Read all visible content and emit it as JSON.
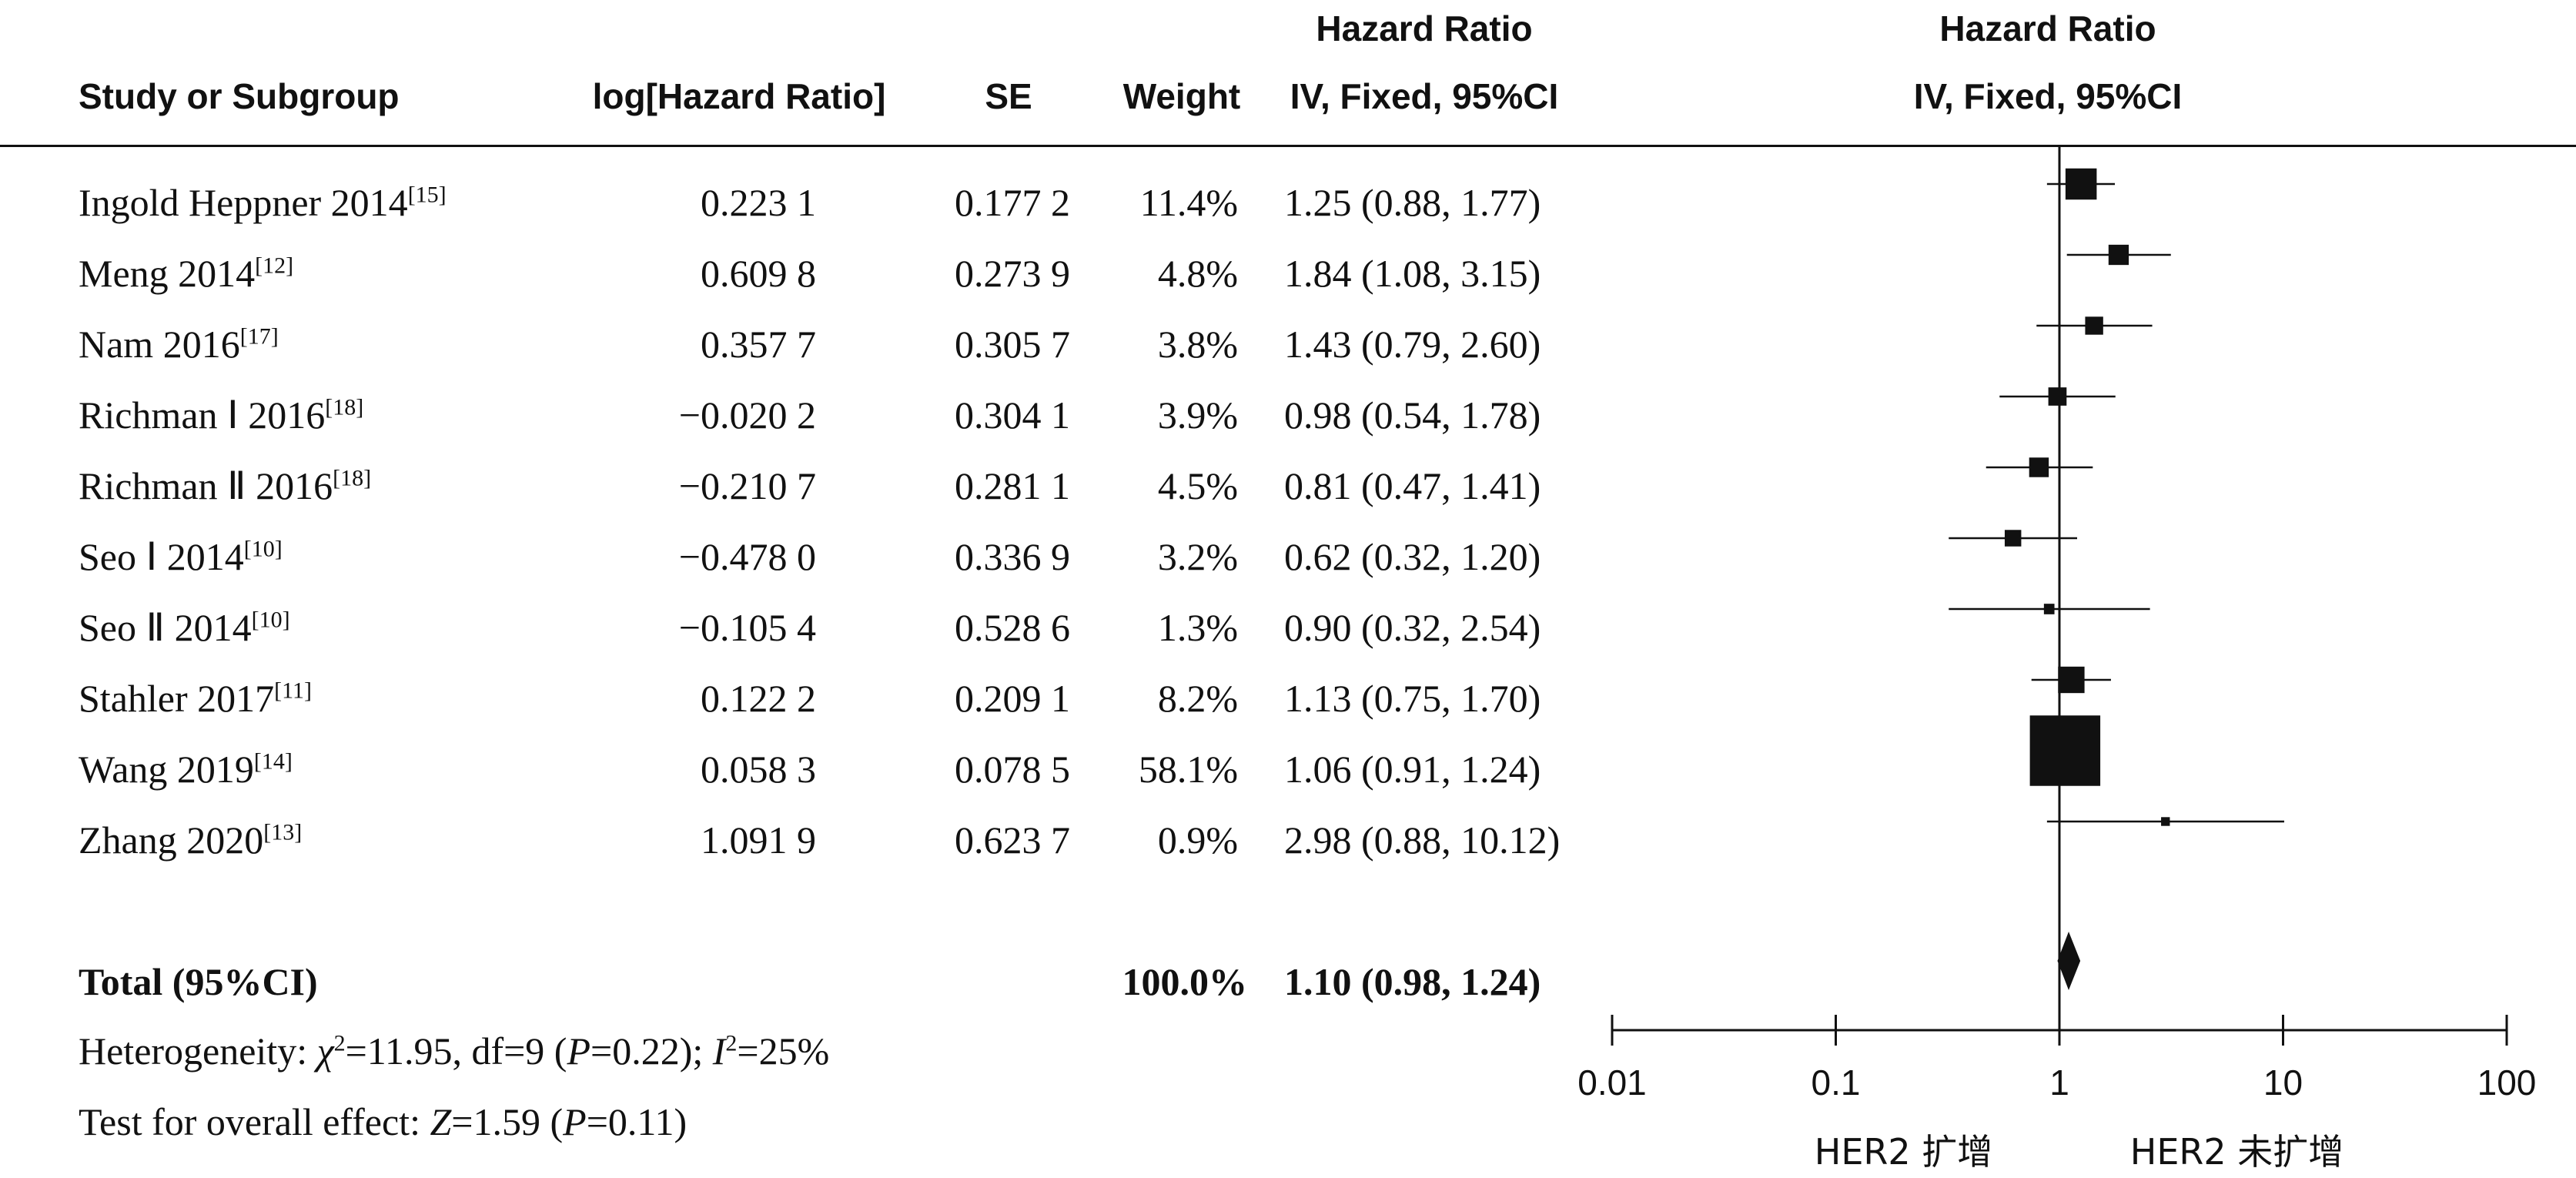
{
  "header": {
    "study": "Study or Subgroup",
    "loghr": "log[Hazard Ratio]",
    "se": "SE",
    "weight": "Weight",
    "hr_top": "Hazard Ratio",
    "hr_bottom": "IV, Fixed, 95%CI",
    "plot_top": "Hazard Ratio",
    "plot_bottom": "IV, Fixed, 95%CI"
  },
  "studies": [
    {
      "name": "Ingold Heppner 2014",
      "ref": "[15]",
      "loghr": "0.223 1",
      "se": "0.177 2",
      "weight": "11.4%",
      "ci": "1.25 (0.88, 1.77)"
    },
    {
      "name": "Meng 2014",
      "ref": "[12]",
      "loghr": "0.609 8",
      "se": "0.273 9",
      "weight": "4.8%",
      "ci": "1.84 (1.08, 3.15)"
    },
    {
      "name": "Nam 2016",
      "ref": "[17]",
      "loghr": "0.357 7",
      "se": "0.305 7",
      "weight": "3.8%",
      "ci": "1.43 (0.79, 2.60)"
    },
    {
      "name": "Richman Ⅰ 2016",
      "ref": "[18]",
      "loghr": "−0.020 2",
      "se": "0.304 1",
      "weight": "3.9%",
      "ci": "0.98 (0.54, 1.78)"
    },
    {
      "name": "Richman Ⅱ 2016",
      "ref": "[18]",
      "loghr": "−0.210 7",
      "se": "0.281 1",
      "weight": "4.5%",
      "ci": "0.81 (0.47, 1.41)"
    },
    {
      "name": "Seo Ⅰ 2014",
      "ref": "[10]",
      "loghr": "−0.478 0",
      "se": "0.336 9",
      "weight": "3.2%",
      "ci": "0.62 (0.32, 1.20)"
    },
    {
      "name": "Seo Ⅱ 2014",
      "ref": "[10]",
      "loghr": "−0.105 4",
      "se": "0.528 6",
      "weight": "1.3%",
      "ci": "0.90 (0.32, 2.54)"
    },
    {
      "name": "Stahler 2017",
      "ref": "[11]",
      "loghr": "0.122 2",
      "se": "0.209 1",
      "weight": "8.2%",
      "ci": "1.13 (0.75, 1.70)"
    },
    {
      "name": "Wang 2019",
      "ref": "[14]",
      "loghr": "0.058 3",
      "se": "0.078 5",
      "weight": "58.1%",
      "ci": "1.06 (0.91, 1.24)"
    },
    {
      "name": "Zhang 2020",
      "ref": "[13]",
      "loghr": "1.091 9",
      "se": "0.623 7",
      "weight": "0.9%",
      "ci": "2.98 (0.88, 10.12)"
    }
  ],
  "total": {
    "label": "Total (95%CI)",
    "weight": "100.0%",
    "ci": "1.10 (0.98, 1.24)"
  },
  "footer": {
    "het_prefix": "Heterogeneity: ",
    "chi": "χ",
    "het_chi_val": "=11.95, df=9 (",
    "p": "P",
    "het_p_val": "=0.22); ",
    "i": "I",
    "het_i_val": "=25%",
    "test_prefix": "Test for overall effect: ",
    "z": "Z",
    "test_z_val": "=1.59 (",
    "test_p_val": "=0.11)"
  },
  "chart_data": {
    "type": "forest",
    "scale": "log",
    "xlim": [
      0.01,
      100
    ],
    "ticks": [
      0.01,
      0.1,
      1,
      10,
      100
    ],
    "tick_labels": [
      "0.01",
      "0.1",
      "1",
      "10",
      "100"
    ],
    "null_line": 1,
    "label_left": "HER2 扩增",
    "label_right": "HER2 未扩增",
    "points": [
      {
        "hr": 1.25,
        "lo": 0.88,
        "hi": 1.77,
        "weight": 11.4
      },
      {
        "hr": 1.84,
        "lo": 1.08,
        "hi": 3.15,
        "weight": 4.8
      },
      {
        "hr": 1.43,
        "lo": 0.79,
        "hi": 2.6,
        "weight": 3.8
      },
      {
        "hr": 0.98,
        "lo": 0.54,
        "hi": 1.78,
        "weight": 3.9
      },
      {
        "hr": 0.81,
        "lo": 0.47,
        "hi": 1.41,
        "weight": 4.5
      },
      {
        "hr": 0.62,
        "lo": 0.32,
        "hi": 1.2,
        "weight": 3.2
      },
      {
        "hr": 0.9,
        "lo": 0.32,
        "hi": 2.54,
        "weight": 1.3
      },
      {
        "hr": 1.13,
        "lo": 0.75,
        "hi": 1.7,
        "weight": 8.2
      },
      {
        "hr": 1.06,
        "lo": 0.91,
        "hi": 1.24,
        "weight": 58.1
      },
      {
        "hr": 2.98,
        "lo": 0.88,
        "hi": 10.12,
        "weight": 0.9
      }
    ],
    "total": {
      "hr": 1.1,
      "lo": 0.98,
      "hi": 1.24
    }
  }
}
